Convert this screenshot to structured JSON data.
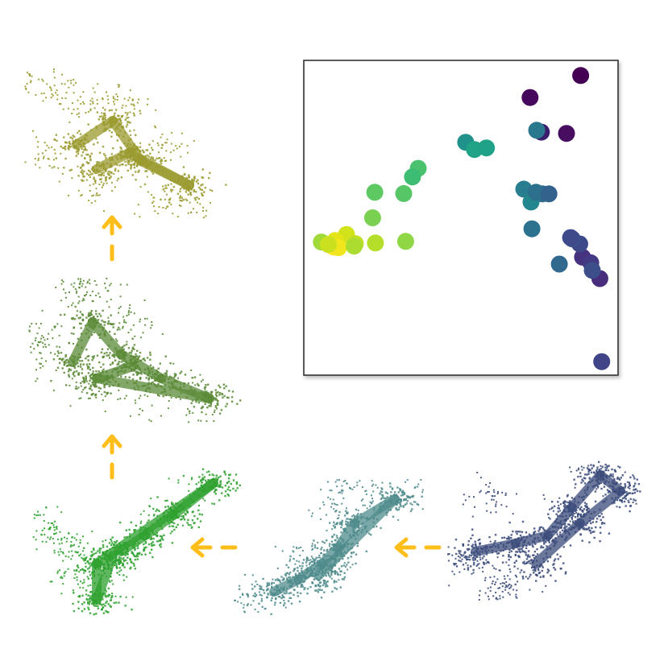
{
  "chart_data": {
    "type": "scatter",
    "title": "",
    "xlabel": "",
    "ylabel": "",
    "axes_ticks": false,
    "grid": false,
    "points": [
      {
        "x": 0.881,
        "y": 0.952,
        "color": "#440154"
      },
      {
        "x": 0.72,
        "y": 0.882,
        "color": "#46085c"
      },
      {
        "x": 0.836,
        "y": 0.768,
        "color": "#460d60"
      },
      {
        "x": 0.756,
        "y": 0.772,
        "color": "#3b1f6e"
      },
      {
        "x": 0.741,
        "y": 0.778,
        "color": "#2a788e"
      },
      {
        "x": 0.942,
        "y": 0.307,
        "color": "#472d7b"
      },
      {
        "x": 0.887,
        "y": 0.375,
        "color": "#46327e"
      },
      {
        "x": 0.913,
        "y": 0.357,
        "color": "#443a83"
      },
      {
        "x": 0.918,
        "y": 0.333,
        "color": "#3c4f8a"
      },
      {
        "x": 0.878,
        "y": 0.417,
        "color": "#3e4989"
      },
      {
        "x": 0.854,
        "y": 0.433,
        "color": "#3b528b"
      },
      {
        "x": 0.849,
        "y": 0.437,
        "color": "#3e4a89"
      },
      {
        "x": 0.813,
        "y": 0.353,
        "color": "#31688e"
      },
      {
        "x": 0.948,
        "y": 0.043,
        "color": "#414487"
      },
      {
        "x": 0.726,
        "y": 0.465,
        "color": "#2c728e"
      },
      {
        "x": 0.759,
        "y": 0.576,
        "color": "#2f6b8e"
      },
      {
        "x": 0.7,
        "y": 0.591,
        "color": "#287d8e"
      },
      {
        "x": 0.723,
        "y": 0.55,
        "color": "#24868e"
      },
      {
        "x": 0.739,
        "y": 0.581,
        "color": "#2d708e"
      },
      {
        "x": 0.78,
        "y": 0.576,
        "color": "#33638d"
      },
      {
        "x": 0.515,
        "y": 0.74,
        "color": "#21918c"
      },
      {
        "x": 0.543,
        "y": 0.717,
        "color": "#20a386"
      },
      {
        "x": 0.581,
        "y": 0.722,
        "color": "#1fa287"
      },
      {
        "x": 0.364,
        "y": 0.657,
        "color": "#4ac16d"
      },
      {
        "x": 0.346,
        "y": 0.63,
        "color": "#3dbc74"
      },
      {
        "x": 0.318,
        "y": 0.577,
        "color": "#56c667"
      },
      {
        "x": 0.226,
        "y": 0.581,
        "color": "#5ec962"
      },
      {
        "x": 0.219,
        "y": 0.5,
        "color": "#7ad151"
      },
      {
        "x": 0.136,
        "y": 0.447,
        "color": "#d2e21b"
      },
      {
        "x": 0.1,
        "y": 0.428,
        "color": "#e5e419"
      },
      {
        "x": 0.056,
        "y": 0.423,
        "color": "#a0da39"
      },
      {
        "x": 0.095,
        "y": 0.407,
        "color": "#fde725"
      },
      {
        "x": 0.111,
        "y": 0.405,
        "color": "#f1e51d"
      },
      {
        "x": 0.164,
        "y": 0.418,
        "color": "#c2df23"
      },
      {
        "x": 0.228,
        "y": 0.42,
        "color": "#b5de2b"
      },
      {
        "x": 0.324,
        "y": 0.425,
        "color": "#8fd744"
      },
      {
        "x": 0.16,
        "y": 0.41,
        "color": "#addc30"
      },
      {
        "x": 0.078,
        "y": 0.415,
        "color": "#cae11f"
      }
    ]
  },
  "point_clouds": [
    {
      "name": "cloud-navy",
      "color": "#3b4b7a"
    },
    {
      "name": "cloud-teal",
      "color": "#4f8b8c"
    },
    {
      "name": "cloud-green",
      "color": "#2ea12e"
    },
    {
      "name": "cloud-olive-green",
      "color": "#5a8a36"
    },
    {
      "name": "cloud-olive-yellow",
      "color": "#9a9a2e"
    }
  ],
  "arrow_color": "#ffbe1a"
}
